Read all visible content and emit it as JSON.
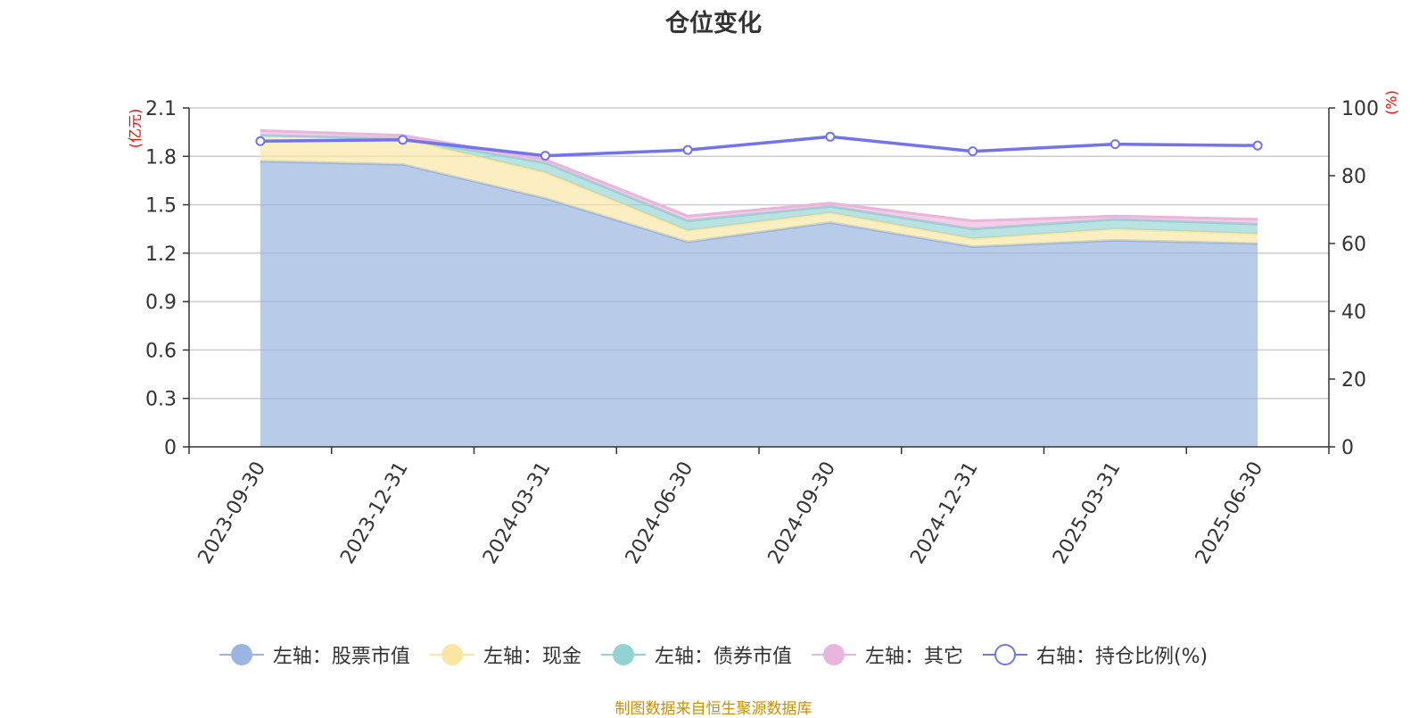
{
  "chart_data": {
    "type": "area",
    "title": "仓位变化",
    "left_axis": {
      "unit_label": "(亿元)",
      "ylim": [
        0,
        2.1
      ],
      "ticks": [
        "0",
        "0.3",
        "0.6",
        "0.9",
        "1.2",
        "1.5",
        "1.8",
        "2.1"
      ]
    },
    "right_axis": {
      "unit_label": "(%)",
      "ylim": [
        0,
        100
      ],
      "ticks": [
        "0",
        "20",
        "40",
        "60",
        "80",
        "100"
      ]
    },
    "grid": true,
    "categories": [
      "2023-09-30",
      "2023-12-31",
      "2024-03-31",
      "2024-06-30",
      "2024-09-30",
      "2024-12-31",
      "2025-03-31",
      "2025-06-30"
    ],
    "series": [
      {
        "name": "左轴：股票市值",
        "axis": "left",
        "type": "stacked-area",
        "color": "#9ab6e0",
        "values": [
          1.77,
          1.75,
          1.54,
          1.27,
          1.39,
          1.24,
          1.28,
          1.26
        ]
      },
      {
        "name": "左轴：现金",
        "axis": "left",
        "type": "stacked-area",
        "color": "#f9e6a2",
        "values": [
          0.16,
          0.16,
          0.16,
          0.07,
          0.06,
          0.05,
          0.07,
          0.06
        ]
      },
      {
        "name": "左轴：债券市值",
        "axis": "left",
        "type": "stacked-area",
        "color": "#93d2d2",
        "values": [
          0,
          0,
          0.06,
          0.06,
          0.04,
          0.06,
          0.06,
          0.06
        ]
      },
      {
        "name": "左轴：其它",
        "axis": "left",
        "type": "stacked-area",
        "color": "#e8b5db",
        "values": [
          0.03,
          0.02,
          0.02,
          0.03,
          0.02,
          0.05,
          0.02,
          0.03
        ]
      },
      {
        "name": "右轴：持仓比例(%)",
        "axis": "right",
        "type": "line",
        "color": "#7373ea",
        "values": [
          90.2,
          90.6,
          85.9,
          87.6,
          91.5,
          87.2,
          89.3,
          88.9
        ]
      }
    ],
    "legend_position": "bottom"
  },
  "footer": {
    "source": "制图数据来自恒生聚源数据库"
  }
}
